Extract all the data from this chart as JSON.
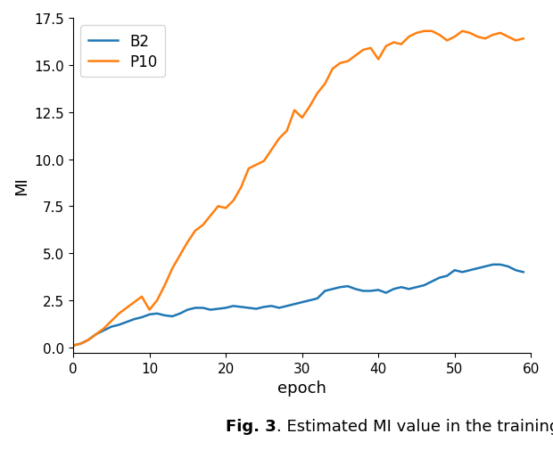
{
  "xlabel": "epoch",
  "ylabel": "MI",
  "caption_bold": "Fig. 3",
  "caption_normal": ". Estimated MI value in the training process.",
  "xlim": [
    0,
    60
  ],
  "ylim": [
    -0.3,
    17.5
  ],
  "yticks": [
    0.0,
    2.5,
    5.0,
    7.5,
    10.0,
    12.5,
    15.0,
    17.5
  ],
  "xticks": [
    0,
    10,
    20,
    30,
    40,
    50,
    60
  ],
  "b2_color": "#1f77b4",
  "p10_color": "#ff7f0e",
  "linewidth": 1.8,
  "b2_x": [
    0,
    1,
    2,
    3,
    4,
    5,
    6,
    7,
    8,
    9,
    10,
    11,
    12,
    13,
    14,
    15,
    16,
    17,
    18,
    19,
    20,
    21,
    22,
    23,
    24,
    25,
    26,
    27,
    28,
    29,
    30,
    31,
    32,
    33,
    34,
    35,
    36,
    37,
    38,
    39,
    40,
    41,
    42,
    43,
    44,
    45,
    46,
    47,
    48,
    49,
    50,
    51,
    52,
    53,
    54,
    55,
    56,
    57,
    58,
    59
  ],
  "b2_y": [
    0.1,
    0.2,
    0.4,
    0.7,
    0.9,
    1.1,
    1.2,
    1.35,
    1.5,
    1.6,
    1.75,
    1.8,
    1.7,
    1.65,
    1.8,
    2.0,
    2.1,
    2.1,
    2.0,
    2.05,
    2.1,
    2.2,
    2.15,
    2.1,
    2.05,
    2.15,
    2.2,
    2.1,
    2.2,
    2.3,
    2.4,
    2.5,
    2.6,
    3.0,
    3.1,
    3.2,
    3.25,
    3.1,
    3.0,
    3.0,
    3.05,
    2.9,
    3.1,
    3.2,
    3.1,
    3.2,
    3.3,
    3.5,
    3.7,
    3.8,
    4.1,
    4.0,
    4.1,
    4.2,
    4.3,
    4.4,
    4.4,
    4.3,
    4.1,
    4.0
  ],
  "p10_x": [
    0,
    1,
    2,
    3,
    4,
    5,
    6,
    7,
    8,
    9,
    10,
    11,
    12,
    13,
    14,
    15,
    16,
    17,
    18,
    19,
    20,
    21,
    22,
    23,
    24,
    25,
    26,
    27,
    28,
    29,
    30,
    31,
    32,
    33,
    34,
    35,
    36,
    37,
    38,
    39,
    40,
    41,
    42,
    43,
    44,
    45,
    46,
    47,
    48,
    49,
    50,
    51,
    52,
    53,
    54,
    55,
    56,
    57,
    58,
    59
  ],
  "p10_y": [
    0.1,
    0.2,
    0.4,
    0.7,
    1.0,
    1.4,
    1.8,
    2.1,
    2.4,
    2.7,
    2.0,
    2.5,
    3.3,
    4.2,
    4.9,
    5.6,
    6.2,
    6.5,
    7.0,
    7.5,
    7.4,
    7.8,
    8.5,
    9.5,
    9.7,
    9.9,
    10.5,
    11.1,
    11.5,
    12.6,
    12.2,
    12.8,
    13.5,
    14.0,
    14.8,
    15.1,
    15.2,
    15.5,
    15.8,
    15.9,
    15.3,
    16.0,
    16.2,
    16.1,
    16.5,
    16.7,
    16.8,
    16.8,
    16.6,
    16.3,
    16.5,
    16.8,
    16.7,
    16.5,
    16.4,
    16.6,
    16.7,
    16.5,
    16.3,
    16.4
  ],
  "caption_fontsize": 13,
  "tick_fontsize": 11,
  "label_fontsize": 13,
  "legend_fontsize": 12
}
